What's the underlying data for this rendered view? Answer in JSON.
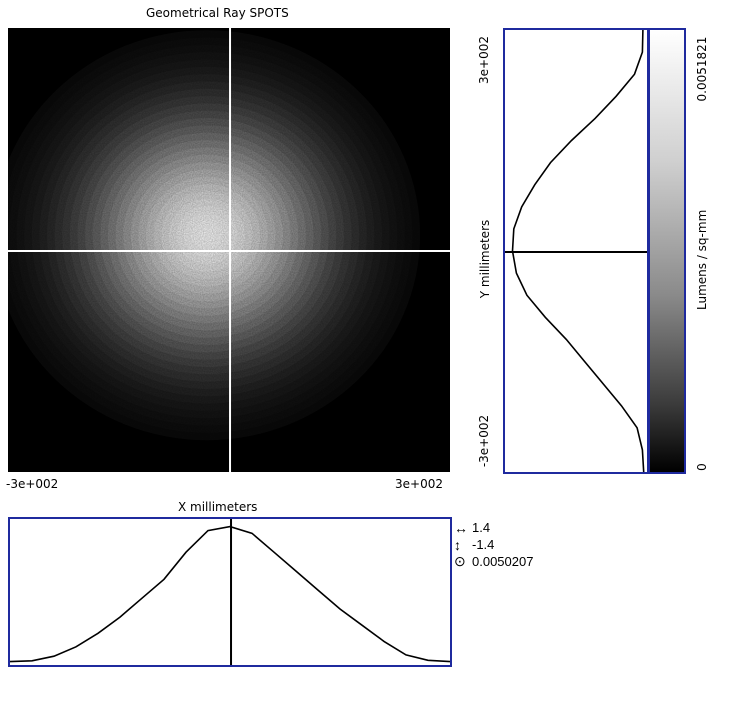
{
  "title": "Geometrical Ray SPOTS",
  "x_axis": {
    "label": "X millimeters",
    "min_label": "-3e+002",
    "max_label": "3e+002"
  },
  "y_axis": {
    "label": "Y millimeters",
    "min_label": "-3e+002",
    "max_label": "3e+002"
  },
  "colorbar": {
    "label": "Lumens / sq-mm",
    "max_label": "0.0051821",
    "min_label": "0",
    "max": 0.0051821,
    "min": 0
  },
  "readout": {
    "x_value": "1.4",
    "y_value": "-1.4",
    "center_value": "0.0050207"
  },
  "colors": {
    "frame": "#1f2a9e",
    "crosshair": "#ffffff",
    "profile": "#000000"
  },
  "chart_data": {
    "type": "heatmap",
    "title": "Geometrical Ray SPOTS",
    "xlabel": "X millimeters",
    "ylabel": "Y millimeters",
    "xlim": [
      -300,
      300
    ],
    "ylim": [
      -300,
      300
    ],
    "colorbar_label": "Lumens / sq-mm",
    "value_range": [
      0,
      0.0051821
    ],
    "cursor": {
      "x": 1.4,
      "y": -1.4,
      "value": 0.0050207
    },
    "spot_center": [
      -30,
      20
    ],
    "x_profile": {
      "x": [
        -300,
        -270,
        -240,
        -210,
        -180,
        -150,
        -120,
        -90,
        -60,
        -30,
        0,
        30,
        60,
        90,
        120,
        150,
        180,
        210,
        240,
        270,
        300
      ],
      "values": [
        5e-05,
        8e-05,
        0.00025,
        0.0006,
        0.0011,
        0.0017,
        0.0024,
        0.0031,
        0.0041,
        0.0049,
        0.00505,
        0.0048,
        0.0041,
        0.0034,
        0.0027,
        0.002,
        0.0014,
        0.0008,
        0.0003,
        0.0001,
        5e-05
      ]
    },
    "y_profile": {
      "y": [
        300,
        270,
        240,
        210,
        180,
        150,
        120,
        90,
        60,
        30,
        0,
        -30,
        -60,
        -90,
        -120,
        -150,
        -180,
        -210,
        -240,
        -270,
        -300
      ],
      "values": [
        8e-05,
        0.0001,
        0.0004,
        0.0011,
        0.0019,
        0.0028,
        0.0036,
        0.0042,
        0.0047,
        0.005,
        0.00505,
        0.0049,
        0.0045,
        0.0038,
        0.003,
        0.0023,
        0.0016,
        0.0009,
        0.0003,
        0.0001,
        5e-05
      ]
    }
  }
}
